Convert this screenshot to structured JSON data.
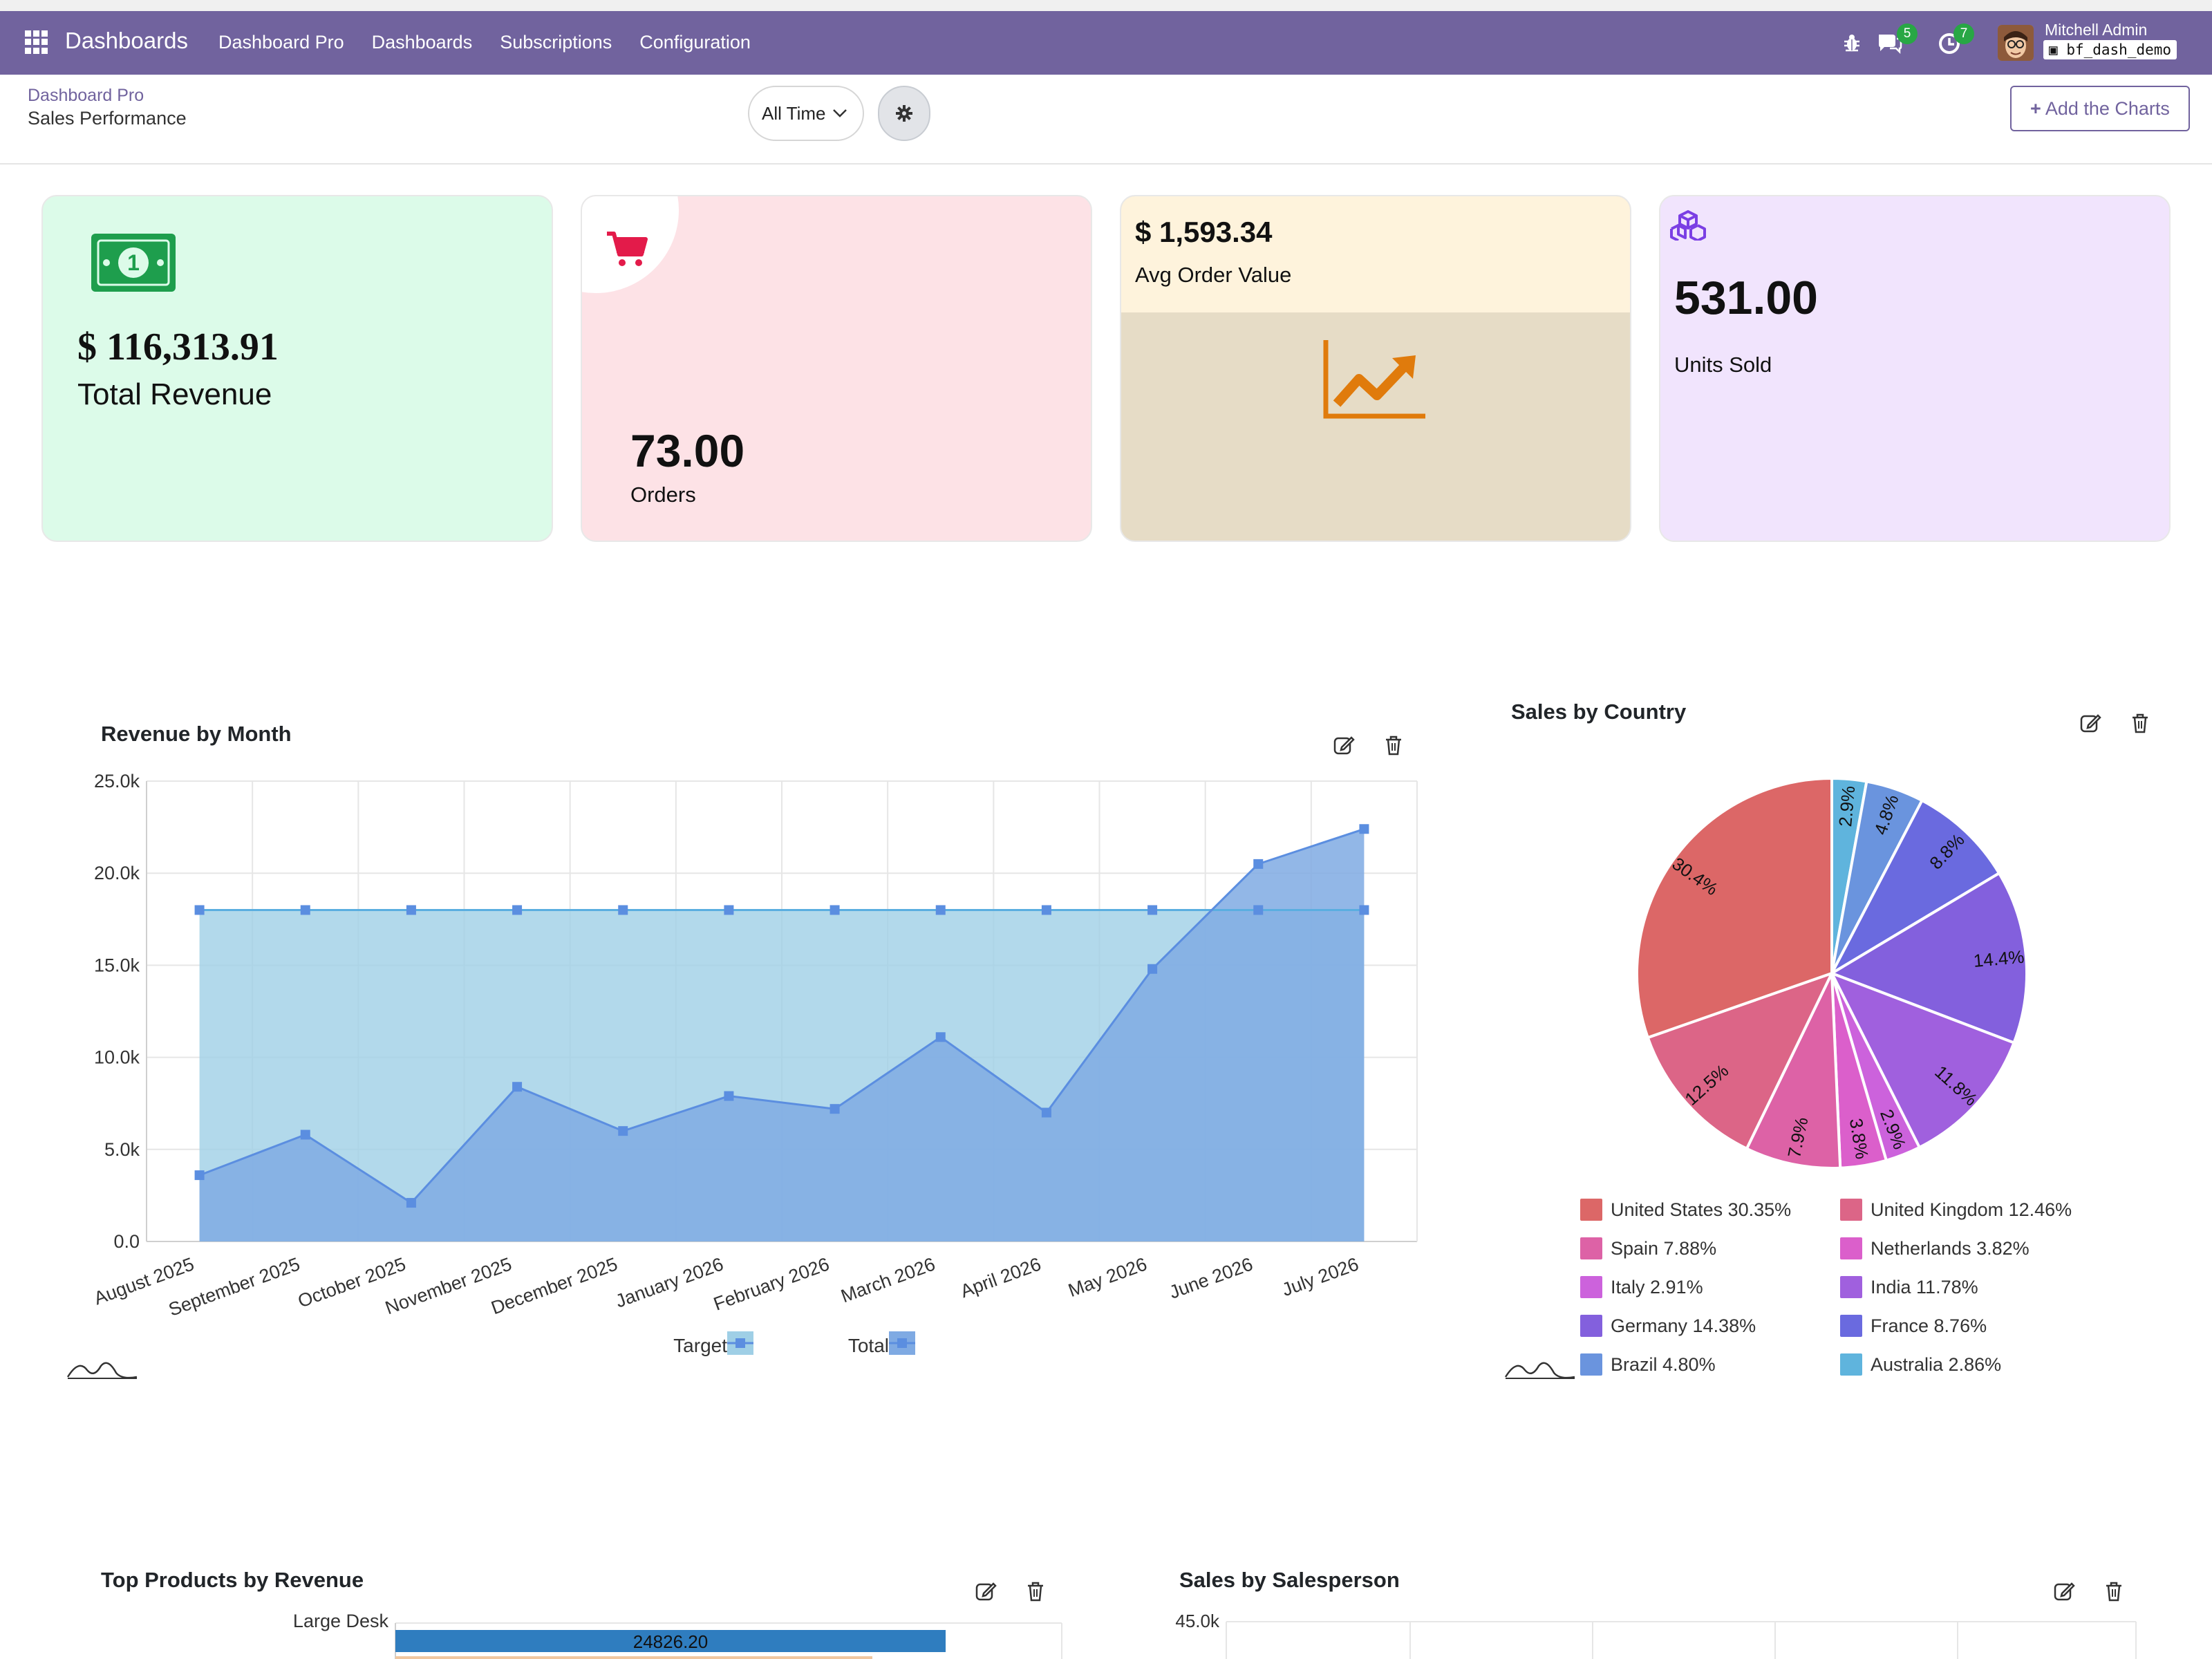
{
  "navbar": {
    "brand": "Dashboards",
    "menu": [
      "Dashboard Pro",
      "Dashboards",
      "Subscriptions",
      "Configuration"
    ],
    "chat_count": "5",
    "activity_count": "7",
    "user_name": "Mitchell Admin",
    "database": "bf_dash_demo"
  },
  "control": {
    "breadcrumb": "Dashboard Pro",
    "title": "Sales Performance",
    "time_filter": "All Time",
    "add_button": "Add the Charts"
  },
  "kpis": [
    {
      "value": "$ 116,313.91",
      "label": "Total Revenue",
      "icon": "money-bill-icon",
      "color": "#1e9e4d"
    },
    {
      "value": "73.00",
      "label": "Orders",
      "icon": "shopping-cart-icon",
      "color": "#e31b4a"
    },
    {
      "value": "$ 1,593.34",
      "label": "Avg Order Value",
      "icon": "line-chart-icon",
      "color": "#e07b0c"
    },
    {
      "value": "531.00",
      "label": "Units Sold",
      "icon": "cubes-icon",
      "color": "#7b3fe4"
    }
  ],
  "revenue_chart": {
    "title": "Revenue by Month",
    "chart_data": {
      "type": "area",
      "categories": [
        "August 2025",
        "September 2025",
        "October 2025",
        "November 2025",
        "December 2025",
        "January 2026",
        "February 2026",
        "March 2026",
        "April 2026",
        "May 2026",
        "June 2026",
        "July 2026"
      ],
      "series": [
        {
          "name": "Target",
          "values": [
            18000,
            18000,
            18000,
            18000,
            18000,
            18000,
            18000,
            18000,
            18000,
            18000,
            18000,
            18000
          ],
          "color": "#9fcfe6",
          "line": "#5aaee0"
        },
        {
          "name": "Total",
          "values": [
            3600,
            5800,
            2100,
            8400,
            6000,
            7900,
            7200,
            11100,
            7000,
            14800,
            20500,
            22400
          ],
          "color": "#7faae3",
          "line": "#5b8ee0"
        }
      ],
      "ylim": [
        0,
        25000
      ],
      "yticks": [
        "0.0",
        "5.0k",
        "10.0k",
        "15.0k",
        "20.0k",
        "25.0k"
      ],
      "grid": true,
      "legend": "bottom"
    }
  },
  "country_chart": {
    "title": "Sales by Country",
    "chart_data": {
      "type": "pie",
      "labels": [
        "Australia",
        "Brazil",
        "France",
        "Germany",
        "India",
        "Italy",
        "Netherlands",
        "Spain",
        "United Kingdom",
        "United States"
      ],
      "values": [
        2.86,
        4.8,
        8.76,
        14.38,
        11.78,
        2.91,
        3.82,
        7.88,
        12.46,
        30.35
      ],
      "slice_labels": [
        "2.9%",
        "4.8%",
        "8.8%",
        "14.4%",
        "11.8%",
        "2.9%",
        "3.8%",
        "7.9%",
        "12.5%",
        "30.4%"
      ],
      "colors": [
        "#5fb4dd",
        "#6a94de",
        "#6a6adf",
        "#8360dd",
        "#a060de",
        "#cc62dc",
        "#db5fcb",
        "#dd62a6",
        "#dc6587",
        "#dc6767"
      ],
      "legend": [
        {
          "text": "United States 30.35%",
          "color": "#dc6767"
        },
        {
          "text": "United Kingdom 12.46%",
          "color": "#dc6587"
        },
        {
          "text": "Spain 7.88%",
          "color": "#dd62a6"
        },
        {
          "text": "Netherlands 3.82%",
          "color": "#db5fcb"
        },
        {
          "text": "Italy 2.91%",
          "color": "#cc62dc"
        },
        {
          "text": "India 11.78%",
          "color": "#a060de"
        },
        {
          "text": "Germany 14.38%",
          "color": "#8360dd"
        },
        {
          "text": "France 8.76%",
          "color": "#6a6adf"
        },
        {
          "text": "Brazil 4.80%",
          "color": "#6a94de"
        },
        {
          "text": "Australia 2.86%",
          "color": "#5fb4dd"
        }
      ]
    }
  },
  "products_chart": {
    "title": "Top Products by Revenue",
    "chart_data": {
      "type": "bar",
      "categories": [
        "Large Desk"
      ],
      "values": [
        24826.2
      ],
      "value_labels": [
        "24826.20"
      ]
    }
  },
  "salesperson_chart": {
    "title": "Sales by Salesperson",
    "chart_data": {
      "type": "bar",
      "yticks": [
        "45.0k"
      ]
    }
  }
}
